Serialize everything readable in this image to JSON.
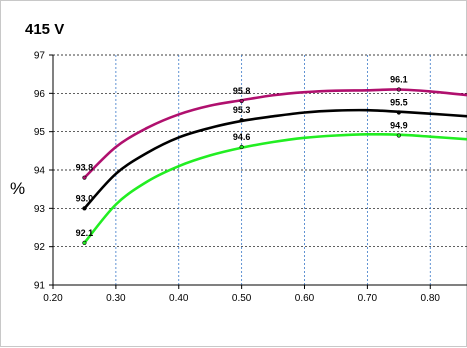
{
  "chart_data": {
    "type": "line",
    "title": "415 V",
    "ylabel": "%",
    "xlabel": "",
    "xlim": [
      0.2,
      0.86
    ],
    "ylim": [
      91,
      97
    ],
    "x_ticks": [
      "0.20",
      "0.30",
      "0.40",
      "0.50",
      "0.60",
      "0.70",
      "0.80"
    ],
    "y_ticks": [
      "91",
      "92",
      "93",
      "94",
      "95",
      "96",
      "97"
    ],
    "grid": true,
    "series": [
      {
        "color": "#b0106e",
        "points": [
          [
            0.25,
            93.8
          ],
          [
            0.3,
            94.6
          ],
          [
            0.35,
            95.1
          ],
          [
            0.4,
            95.45
          ],
          [
            0.45,
            95.68
          ],
          [
            0.5,
            95.82
          ],
          [
            0.55,
            95.95
          ],
          [
            0.6,
            96.03
          ],
          [
            0.65,
            96.07
          ],
          [
            0.7,
            96.08
          ],
          [
            0.75,
            96.1
          ],
          [
            0.8,
            96.05
          ],
          [
            0.86,
            95.95
          ]
        ],
        "labels": [
          {
            "x": 0.25,
            "y": 93.8,
            "text": "93.8"
          },
          {
            "x": 0.5,
            "y": 95.8,
            "text": "95.8"
          },
          {
            "x": 0.75,
            "y": 96.1,
            "text": "96.1"
          }
        ]
      },
      {
        "color": "#000000",
        "points": [
          [
            0.25,
            93.0
          ],
          [
            0.3,
            93.9
          ],
          [
            0.35,
            94.45
          ],
          [
            0.4,
            94.85
          ],
          [
            0.45,
            95.1
          ],
          [
            0.5,
            95.28
          ],
          [
            0.55,
            95.4
          ],
          [
            0.6,
            95.5
          ],
          [
            0.65,
            95.55
          ],
          [
            0.7,
            95.56
          ],
          [
            0.75,
            95.52
          ],
          [
            0.8,
            95.47
          ],
          [
            0.86,
            95.4
          ]
        ],
        "labels": [
          {
            "x": 0.25,
            "y": 93.0,
            "text": "93.0"
          },
          {
            "x": 0.5,
            "y": 95.3,
            "text": "95.3"
          },
          {
            "x": 0.75,
            "y": 95.5,
            "text": "95.5"
          }
        ]
      },
      {
        "color": "#22ee22",
        "points": [
          [
            0.25,
            92.1
          ],
          [
            0.3,
            93.1
          ],
          [
            0.35,
            93.7
          ],
          [
            0.4,
            94.1
          ],
          [
            0.45,
            94.38
          ],
          [
            0.5,
            94.58
          ],
          [
            0.55,
            94.73
          ],
          [
            0.6,
            94.84
          ],
          [
            0.65,
            94.9
          ],
          [
            0.7,
            94.93
          ],
          [
            0.75,
            94.92
          ],
          [
            0.8,
            94.87
          ],
          [
            0.86,
            94.8
          ]
        ],
        "labels": [
          {
            "x": 0.25,
            "y": 92.1,
            "text": "92.1"
          },
          {
            "x": 0.5,
            "y": 94.6,
            "text": "94.6"
          },
          {
            "x": 0.75,
            "y": 94.9,
            "text": "94.9"
          }
        ]
      }
    ]
  }
}
